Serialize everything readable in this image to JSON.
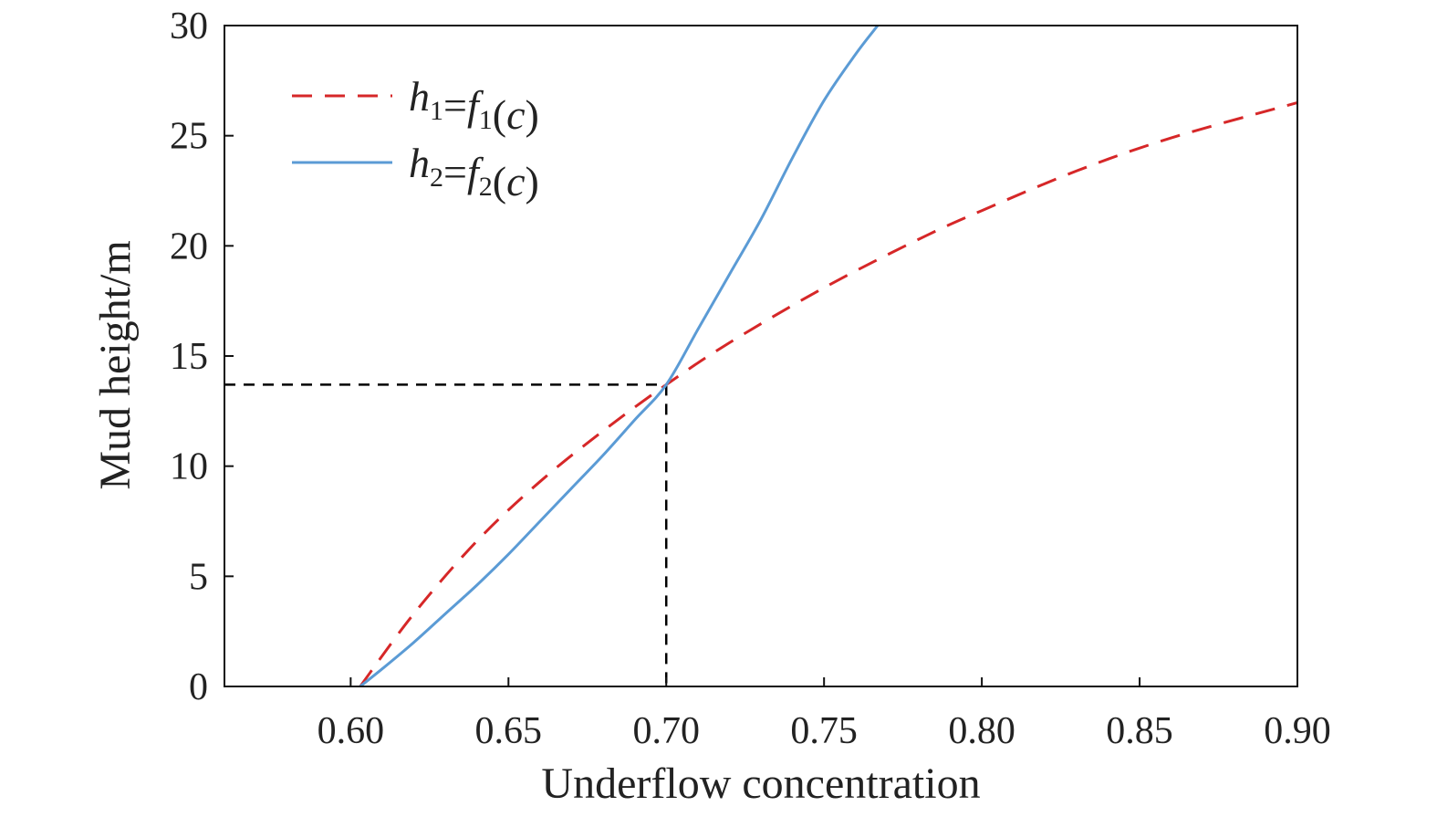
{
  "chart_data": {
    "type": "line",
    "xlabel": "Underflow concentration",
    "ylabel": "Mud height/m",
    "xlim": [
      0.56,
      0.9
    ],
    "ylim": [
      0,
      30
    ],
    "x_ticks": [
      "0.60",
      "0.65",
      "0.70",
      "0.75",
      "0.80",
      "0.85",
      "0.90"
    ],
    "y_ticks": [
      "0",
      "5",
      "10",
      "15",
      "20",
      "25",
      "30"
    ],
    "grid": false,
    "legend_position": "top-left",
    "series": [
      {
        "name": "h1=f1(c)",
        "style": "dashed",
        "color": "#d62728",
        "x": [
          0.603,
          0.62,
          0.64,
          0.66,
          0.68,
          0.7,
          0.72,
          0.75,
          0.78,
          0.8,
          0.83,
          0.86,
          0.9
        ],
        "y": [
          0.0,
          3.3,
          6.6,
          9.3,
          11.6,
          13.7,
          15.6,
          18.1,
          20.3,
          21.6,
          23.4,
          24.9,
          26.5
        ]
      },
      {
        "name": "h2=f2(c)",
        "style": "solid",
        "color": "#5b9bd5",
        "x": [
          0.603,
          0.61,
          0.62,
          0.63,
          0.64,
          0.65,
          0.66,
          0.67,
          0.68,
          0.69,
          0.7,
          0.71,
          0.72,
          0.73,
          0.74,
          0.75,
          0.76,
          0.767
        ],
        "y": [
          0.0,
          0.8,
          2.0,
          3.3,
          4.6,
          6.0,
          7.5,
          9.0,
          10.5,
          12.1,
          13.7,
          16.2,
          18.7,
          21.2,
          24.0,
          26.6,
          28.7,
          30.0
        ]
      }
    ],
    "annotations": [
      {
        "type": "reference-lines",
        "style": "dashed",
        "color": "#000000",
        "x": 0.7,
        "y": 13.7
      }
    ],
    "legend_labels": [
      {
        "var": "h",
        "sub": "1",
        "eq": "=",
        "fn": "f",
        "fsub": "1",
        "arg": "(c)"
      },
      {
        "var": "h",
        "sub": "2",
        "eq": "=",
        "fn": "f",
        "fsub": "2",
        "arg": "(c)"
      }
    ]
  }
}
